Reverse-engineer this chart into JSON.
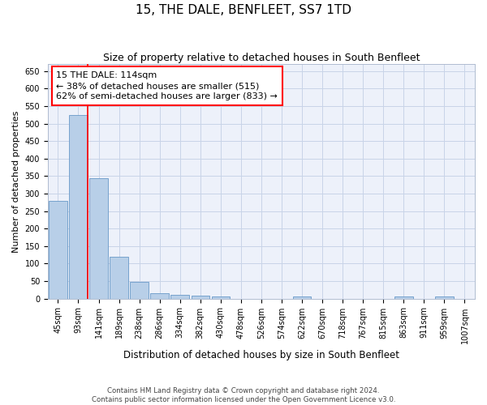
{
  "title": "15, THE DALE, BENFLEET, SS7 1TD",
  "subtitle": "Size of property relative to detached houses in South Benfleet",
  "xlabel": "Distribution of detached houses by size in South Benfleet",
  "ylabel": "Number of detached properties",
  "footer_line1": "Contains HM Land Registry data © Crown copyright and database right 2024.",
  "footer_line2": "Contains public sector information licensed under the Open Government Licence v3.0.",
  "categories": [
    "45sqm",
    "93sqm",
    "141sqm",
    "189sqm",
    "238sqm",
    "286sqm",
    "334sqm",
    "382sqm",
    "430sqm",
    "478sqm",
    "526sqm",
    "574sqm",
    "622sqm",
    "670sqm",
    "718sqm",
    "767sqm",
    "815sqm",
    "863sqm",
    "911sqm",
    "959sqm",
    "1007sqm"
  ],
  "values": [
    280,
    525,
    345,
    120,
    48,
    15,
    10,
    8,
    5,
    0,
    0,
    0,
    5,
    0,
    0,
    0,
    0,
    5,
    0,
    5,
    0
  ],
  "bar_color": "#b8cfe8",
  "bar_edge_color": "#6899c8",
  "vline_x": 1.5,
  "annotation_box_text": "15 THE DALE: 114sqm\n← 38% of detached houses are smaller (515)\n62% of semi-detached houses are larger (833) →",
  "ylim": [
    0,
    670
  ],
  "yticks": [
    0,
    50,
    100,
    150,
    200,
    250,
    300,
    350,
    400,
    450,
    500,
    550,
    600,
    650
  ],
  "grid_color": "#c8d4e8",
  "bg_color": "#edf1fa",
  "title_fontsize": 11,
  "subtitle_fontsize": 9,
  "annotation_fontsize": 8,
  "tick_fontsize": 7,
  "label_fontsize": 8.5,
  "ylabel_fontsize": 8
}
